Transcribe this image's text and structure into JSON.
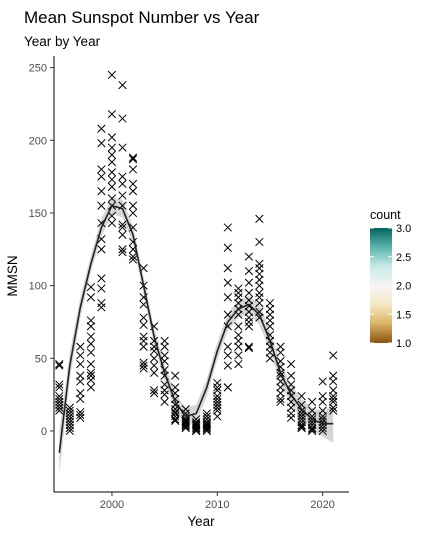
{
  "chart_data": {
    "type": "scatter",
    "title": "Mean Sunspot Number vs Year",
    "subtitle": "Year by Year",
    "xlabel": "Year",
    "ylabel": "MMSN",
    "xlim": [
      1994.5,
      2022.5
    ],
    "ylim": [
      -42,
      258
    ],
    "x_ticks": [
      2000,
      2010,
      2020
    ],
    "y_ticks": [
      0,
      50,
      100,
      150,
      200,
      250
    ],
    "grid": false,
    "marker": "x",
    "legend": {
      "title": "count",
      "placement": "right",
      "range": [
        1.0,
        3.0
      ],
      "ticks": [
        1.0,
        1.5,
        2.0,
        2.5,
        3.0
      ],
      "colors": [
        "#8c510a",
        "#d8b365",
        "#f6e8c3",
        "#f5f5f5",
        "#c7eae5",
        "#5ab4ac",
        "#01665e"
      ]
    },
    "points": [
      [
        1995,
        46
      ],
      [
        1995,
        45
      ],
      [
        1995,
        32
      ],
      [
        1995,
        30
      ],
      [
        1995,
        24
      ],
      [
        1995,
        22
      ],
      [
        1995,
        20
      ],
      [
        1995,
        18
      ],
      [
        1995,
        16
      ],
      [
        1995,
        14
      ],
      [
        1996,
        16
      ],
      [
        1996,
        14
      ],
      [
        1996,
        12
      ],
      [
        1996,
        10
      ],
      [
        1996,
        8
      ],
      [
        1996,
        6
      ],
      [
        1996,
        4
      ],
      [
        1996,
        2
      ],
      [
        1996,
        0
      ],
      [
        1997,
        58
      ],
      [
        1997,
        52
      ],
      [
        1997,
        46
      ],
      [
        1997,
        38
      ],
      [
        1997,
        34
      ],
      [
        1997,
        26
      ],
      [
        1997,
        22
      ],
      [
        1997,
        13
      ],
      [
        1997,
        11
      ],
      [
        1997,
        9
      ],
      [
        1998,
        92
      ],
      [
        1998,
        99
      ],
      [
        1998,
        76
      ],
      [
        1998,
        72
      ],
      [
        1998,
        65
      ],
      [
        1998,
        60
      ],
      [
        1998,
        54
      ],
      [
        1998,
        46
      ],
      [
        1998,
        40
      ],
      [
        1998,
        38
      ],
      [
        1998,
        35
      ],
      [
        1998,
        30
      ],
      [
        1999,
        208
      ],
      [
        1999,
        198
      ],
      [
        1999,
        180
      ],
      [
        1999,
        175
      ],
      [
        1999,
        165
      ],
      [
        1999,
        155
      ],
      [
        1999,
        143
      ],
      [
        1999,
        132
      ],
      [
        1999,
        125
      ],
      [
        1999,
        105
      ],
      [
        1999,
        98
      ],
      [
        1999,
        88
      ],
      [
        1999,
        85
      ],
      [
        2000,
        245
      ],
      [
        2000,
        218
      ],
      [
        2000,
        202
      ],
      [
        2000,
        195
      ],
      [
        2000,
        190
      ],
      [
        2000,
        185
      ],
      [
        2000,
        178
      ],
      [
        2000,
        173
      ],
      [
        2000,
        168
      ],
      [
        2000,
        160
      ],
      [
        2000,
        155
      ],
      [
        2000,
        148
      ],
      [
        2000,
        143
      ],
      [
        2001,
        238
      ],
      [
        2001,
        215
      ],
      [
        2001,
        195
      ],
      [
        2001,
        175
      ],
      [
        2001,
        170
      ],
      [
        2001,
        162
      ],
      [
        2001,
        155
      ],
      [
        2001,
        142
      ],
      [
        2001,
        140
      ],
      [
        2001,
        135
      ],
      [
        2001,
        125
      ],
      [
        2001,
        123
      ],
      [
        2002,
        188
      ],
      [
        2002,
        187
      ],
      [
        2002,
        180
      ],
      [
        2002,
        170
      ],
      [
        2002,
        165
      ],
      [
        2002,
        155
      ],
      [
        2002,
        150
      ],
      [
        2002,
        140
      ],
      [
        2002,
        130
      ],
      [
        2002,
        125
      ],
      [
        2002,
        120
      ],
      [
        2002,
        118
      ],
      [
        2003,
        112
      ],
      [
        2003,
        100
      ],
      [
        2003,
        92
      ],
      [
        2003,
        87
      ],
      [
        2003,
        78
      ],
      [
        2003,
        73
      ],
      [
        2003,
        65
      ],
      [
        2003,
        62
      ],
      [
        2003,
        58
      ],
      [
        2003,
        47
      ],
      [
        2003,
        43
      ],
      [
        2003,
        45
      ],
      [
        2004,
        72
      ],
      [
        2004,
        62
      ],
      [
        2004,
        58
      ],
      [
        2004,
        55
      ],
      [
        2004,
        50
      ],
      [
        2004,
        45
      ],
      [
        2004,
        40
      ],
      [
        2004,
        28
      ],
      [
        2004,
        26
      ],
      [
        2005,
        62
      ],
      [
        2005,
        58
      ],
      [
        2005,
        52
      ],
      [
        2005,
        48
      ],
      [
        2005,
        42
      ],
      [
        2005,
        38
      ],
      [
        2005,
        32
      ],
      [
        2005,
        28
      ],
      [
        2005,
        25
      ],
      [
        2005,
        20
      ],
      [
        2006,
        38
      ],
      [
        2006,
        30
      ],
      [
        2006,
        26
      ],
      [
        2006,
        22
      ],
      [
        2006,
        18
      ],
      [
        2006,
        15
      ],
      [
        2006,
        13
      ],
      [
        2006,
        12
      ],
      [
        2006,
        10
      ],
      [
        2006,
        8
      ],
      [
        2006,
        7
      ],
      [
        2007,
        15
      ],
      [
        2007,
        12
      ],
      [
        2007,
        10
      ],
      [
        2007,
        8
      ],
      [
        2007,
        7
      ],
      [
        2007,
        6
      ],
      [
        2007,
        5
      ],
      [
        2007,
        4
      ],
      [
        2007,
        3
      ],
      [
        2007,
        2
      ],
      [
        2008,
        8
      ],
      [
        2008,
        6
      ],
      [
        2008,
        5
      ],
      [
        2008,
        4
      ],
      [
        2008,
        3
      ],
      [
        2008,
        2
      ],
      [
        2008,
        1
      ],
      [
        2008,
        0
      ],
      [
        2008,
        0
      ],
      [
        2009,
        12
      ],
      [
        2009,
        10
      ],
      [
        2009,
        8
      ],
      [
        2009,
        6
      ],
      [
        2009,
        5
      ],
      [
        2009,
        4
      ],
      [
        2009,
        3
      ],
      [
        2009,
        2
      ],
      [
        2009,
        1
      ],
      [
        2009,
        0
      ],
      [
        2010,
        33
      ],
      [
        2010,
        30
      ],
      [
        2010,
        28
      ],
      [
        2010,
        24
      ],
      [
        2010,
        22
      ],
      [
        2010,
        20
      ],
      [
        2010,
        18
      ],
      [
        2010,
        16
      ],
      [
        2010,
        14
      ],
      [
        2010,
        10
      ],
      [
        2011,
        140
      ],
      [
        2011,
        126
      ],
      [
        2011,
        112
      ],
      [
        2011,
        102
      ],
      [
        2011,
        92
      ],
      [
        2011,
        80
      ],
      [
        2011,
        72
      ],
      [
        2011,
        58
      ],
      [
        2011,
        52
      ],
      [
        2011,
        45
      ],
      [
        2011,
        30
      ],
      [
        2011,
        30
      ],
      [
        2012,
        98
      ],
      [
        2012,
        95
      ],
      [
        2012,
        92
      ],
      [
        2012,
        88
      ],
      [
        2012,
        84
      ],
      [
        2012,
        80
      ],
      [
        2012,
        72
      ],
      [
        2012,
        66
      ],
      [
        2012,
        62
      ],
      [
        2012,
        58
      ],
      [
        2012,
        52
      ],
      [
        2012,
        46
      ],
      [
        2013,
        120
      ],
      [
        2013,
        110
      ],
      [
        2013,
        102
      ],
      [
        2013,
        95
      ],
      [
        2013,
        90
      ],
      [
        2013,
        86
      ],
      [
        2013,
        82
      ],
      [
        2013,
        78
      ],
      [
        2013,
        75
      ],
      [
        2013,
        58
      ],
      [
        2013,
        57
      ],
      [
        2013,
        72
      ],
      [
        2014,
        146
      ],
      [
        2014,
        130
      ],
      [
        2014,
        115
      ],
      [
        2014,
        112
      ],
      [
        2014,
        108
      ],
      [
        2014,
        104
      ],
      [
        2014,
        100
      ],
      [
        2014,
        95
      ],
      [
        2014,
        92
      ],
      [
        2014,
        88
      ],
      [
        2014,
        82
      ],
      [
        2014,
        78
      ],
      [
        2015,
        88
      ],
      [
        2015,
        84
      ],
      [
        2015,
        80
      ],
      [
        2015,
        76
      ],
      [
        2015,
        72
      ],
      [
        2015,
        66
      ],
      [
        2015,
        62
      ],
      [
        2015,
        58
      ],
      [
        2015,
        54
      ],
      [
        2015,
        50
      ],
      [
        2016,
        58
      ],
      [
        2016,
        54
      ],
      [
        2016,
        48
      ],
      [
        2016,
        44
      ],
      [
        2016,
        40
      ],
      [
        2016,
        38
      ],
      [
        2016,
        34
      ],
      [
        2016,
        30
      ],
      [
        2016,
        26
      ],
      [
        2016,
        22
      ],
      [
        2016,
        20
      ],
      [
        2017,
        46
      ],
      [
        2017,
        38
      ],
      [
        2017,
        32
      ],
      [
        2017,
        28
      ],
      [
        2017,
        24
      ],
      [
        2017,
        20
      ],
      [
        2017,
        16
      ],
      [
        2017,
        12
      ],
      [
        2017,
        9
      ],
      [
        2018,
        24
      ],
      [
        2018,
        18
      ],
      [
        2018,
        14
      ],
      [
        2018,
        12
      ],
      [
        2018,
        10
      ],
      [
        2018,
        8
      ],
      [
        2018,
        6
      ],
      [
        2018,
        4
      ],
      [
        2018,
        3
      ],
      [
        2018,
        2
      ],
      [
        2019,
        20
      ],
      [
        2019,
        14
      ],
      [
        2019,
        10
      ],
      [
        2019,
        8
      ],
      [
        2019,
        6
      ],
      [
        2019,
        4
      ],
      [
        2019,
        2
      ],
      [
        2019,
        1
      ],
      [
        2019,
        0
      ],
      [
        2020,
        34
      ],
      [
        2020,
        24
      ],
      [
        2020,
        20
      ],
      [
        2020,
        14
      ],
      [
        2020,
        10
      ],
      [
        2020,
        8
      ],
      [
        2020,
        6
      ],
      [
        2020,
        4
      ],
      [
        2020,
        2
      ],
      [
        2020,
        0
      ],
      [
        2021,
        52
      ],
      [
        2021,
        38
      ],
      [
        2021,
        34
      ],
      [
        2021,
        28
      ],
      [
        2021,
        24
      ],
      [
        2021,
        22
      ],
      [
        2021,
        20
      ],
      [
        2021,
        16
      ],
      [
        2021,
        14
      ]
    ],
    "smooth_fit": {
      "x": [
        1995,
        1996,
        1997,
        1998,
        1999,
        2000,
        2001,
        2002,
        2003,
        2004,
        2005,
        2006,
        2007,
        2008,
        2009,
        2010,
        2011,
        2012,
        2013,
        2014,
        2015,
        2016,
        2017,
        2018,
        2019,
        2020,
        2021
      ],
      "y": [
        -15,
        45,
        85,
        115,
        140,
        155,
        153,
        135,
        100,
        65,
        40,
        20,
        10,
        12,
        30,
        55,
        75,
        84,
        87,
        80,
        62,
        40,
        25,
        15,
        8,
        5,
        5
      ],
      "lower": [
        -30,
        36,
        78,
        109,
        134,
        149,
        147,
        129,
        94,
        59,
        34,
        14,
        4,
        6,
        24,
        49,
        69,
        78,
        81,
        73,
        55,
        33,
        18,
        8,
        0,
        -4,
        -8
      ],
      "upper": [
        0,
        54,
        92,
        121,
        146,
        161,
        159,
        141,
        106,
        71,
        46,
        26,
        16,
        18,
        36,
        61,
        81,
        90,
        93,
        87,
        69,
        47,
        32,
        22,
        16,
        14,
        18
      ]
    }
  }
}
